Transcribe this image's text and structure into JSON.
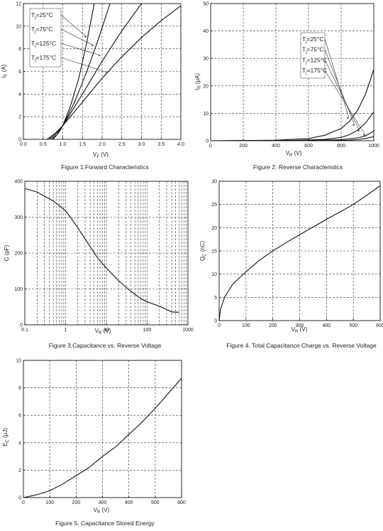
{
  "chart_data": [
    {
      "type": "line",
      "title": "Figure 1.Forward Characteristics",
      "xlabel": "V",
      "xlabel_sub": "F",
      "xlabel_unit": " (V)",
      "ylabel": "I",
      "ylabel_sub": "F",
      "ylabel_unit": " (A)",
      "xlim": [
        0,
        4
      ],
      "ylim": [
        0,
        12
      ],
      "xticks": [
        "0.0",
        "0.5",
        "1.0",
        "1.5",
        "2.0",
        "2.5",
        "3.0",
        "3.5",
        "4.0"
      ],
      "yticks": [
        "0",
        "2",
        "4",
        "6",
        "8",
        "10",
        "12"
      ],
      "legend": [
        "T =25°C",
        "T =75°C",
        "T =125°C",
        "T =175°C"
      ],
      "legend_sub": "j",
      "series": [
        {
          "x": [
            0.6,
            0.8,
            1.0,
            1.2,
            1.4,
            1.6,
            1.8
          ],
          "y": [
            0,
            0.5,
            1.2,
            3.0,
            5.3,
            8.4,
            12.0
          ]
        },
        {
          "x": [
            0.65,
            0.8,
            1.0,
            1.3,
            1.6,
            1.9,
            2.2
          ],
          "y": [
            0,
            0.4,
            1.2,
            3.3,
            5.9,
            8.8,
            12.0
          ]
        },
        {
          "x": [
            0.7,
            0.85,
            1.0,
            1.5,
            2.0,
            2.5,
            3.0
          ],
          "y": [
            0,
            0.4,
            1.2,
            4.0,
            6.9,
            9.6,
            12.0
          ]
        },
        {
          "x": [
            0.75,
            0.9,
            1.0,
            1.5,
            2.0,
            2.5,
            3.0,
            3.5,
            4.0
          ],
          "y": [
            0,
            0.6,
            1.2,
            3.3,
            5.4,
            7.3,
            9.0,
            10.5,
            11.8
          ]
        }
      ]
    },
    {
      "type": "line",
      "title": "Figure 2. Reverse Characteristics",
      "xlabel": "V",
      "xlabel_sub": "R",
      "xlabel_unit": " (V)",
      "ylabel": "I",
      "ylabel_sub": "R",
      "ylabel_unit": " (μA)",
      "xlim": [
        0,
        1000
      ],
      "ylim": [
        0,
        50
      ],
      "xticks": [
        "0",
        "200",
        "400",
        "600",
        "800",
        "1000"
      ],
      "yticks": [
        "0",
        "10",
        "20",
        "30",
        "40",
        "50"
      ],
      "legend": [
        "T =25°C",
        "T =75°C",
        "T =125°C",
        "T =175°C"
      ],
      "legend_sub": "j",
      "series": [
        {
          "x": [
            0,
            400,
            600,
            700,
            800,
            850,
            900,
            950,
            1000
          ],
          "y": [
            0,
            0.2,
            0.8,
            2,
            4.5,
            7,
            11,
            17,
            26
          ]
        },
        {
          "x": [
            0,
            500,
            700,
            800,
            850,
            900,
            950,
            1000
          ],
          "y": [
            0,
            0.1,
            0.5,
            1.2,
            2.2,
            3.8,
            6.5,
            10.5
          ]
        },
        {
          "x": [
            0,
            600,
            800,
            900,
            950,
            1000
          ],
          "y": [
            0,
            0.1,
            0.4,
            1.0,
            1.8,
            3.5
          ]
        },
        {
          "x": [
            0,
            700,
            850,
            900,
            950,
            1000
          ],
          "y": [
            0,
            0.05,
            0.2,
            0.4,
            0.8,
            1.5
          ]
        }
      ]
    },
    {
      "type": "line",
      "title": "Figure 3.Capacitance vs. Reverse Voltage",
      "xlabel": "V",
      "xlabel_sub": "R",
      "xlabel_unit": " (V)",
      "ylabel": "C (pF)",
      "xscale": "log",
      "xlim": [
        0.1,
        1000
      ],
      "ylim": [
        0,
        400
      ],
      "xticks": [
        "0.1",
        "1",
        "10",
        "100",
        "1000"
      ],
      "yticks": [
        "0",
        "100",
        "200",
        "300",
        "400"
      ],
      "series": [
        {
          "x": [
            0.1,
            0.2,
            0.5,
            1,
            2,
            4,
            6,
            10,
            20,
            40,
            70,
            100,
            200,
            400,
            600
          ],
          "y": [
            380,
            370,
            345,
            318,
            270,
            218,
            188,
            158,
            123,
            93,
            73,
            64,
            52,
            36,
            35
          ]
        }
      ]
    },
    {
      "type": "line",
      "title": "Figure 4. Total Capacitance Charge vs. Reverse Voltage",
      "xlabel": "V",
      "xlabel_sub": "R",
      "xlabel_unit": " (V)",
      "ylabel": "Q",
      "ylabel_sub": "C",
      "ylabel_unit": " (nC)",
      "xlim": [
        0,
        600
      ],
      "ylim": [
        0,
        30
      ],
      "xticks": [
        "0",
        "100",
        "200",
        "300",
        "400",
        "500",
        "600"
      ],
      "yticks": [
        "0",
        "5",
        "10",
        "15",
        "20",
        "25",
        "30"
      ],
      "series": [
        {
          "x": [
            0,
            5,
            20,
            50,
            100,
            150,
            200,
            250,
            300,
            400,
            500,
            600
          ],
          "y": [
            0,
            2.5,
            5,
            7.8,
            10.5,
            13,
            15,
            16.8,
            18.5,
            21.8,
            25,
            29
          ]
        }
      ]
    },
    {
      "type": "line",
      "title": "Figure 5. Capacitance Stored Energy",
      "xlabel": "V",
      "xlabel_sub": "R",
      "xlabel_unit": " (V)",
      "ylabel": "E",
      "ylabel_sub": "C",
      "ylabel_unit": " (μJ)",
      "xlim": [
        0,
        600
      ],
      "ylim": [
        0,
        10
      ],
      "xticks": [
        "0",
        "100",
        "200",
        "300",
        "400",
        "500",
        "600"
      ],
      "yticks": [
        "0",
        "2",
        "4",
        "6",
        "8",
        "10"
      ],
      "series": [
        {
          "x": [
            0,
            50,
            100,
            150,
            200,
            250,
            300,
            350,
            400,
            450,
            500,
            550,
            600
          ],
          "y": [
            0,
            0.2,
            0.5,
            1.0,
            1.6,
            2.2,
            3.0,
            3.7,
            4.6,
            5.5,
            6.5,
            7.6,
            8.7
          ]
        }
      ]
    }
  ]
}
